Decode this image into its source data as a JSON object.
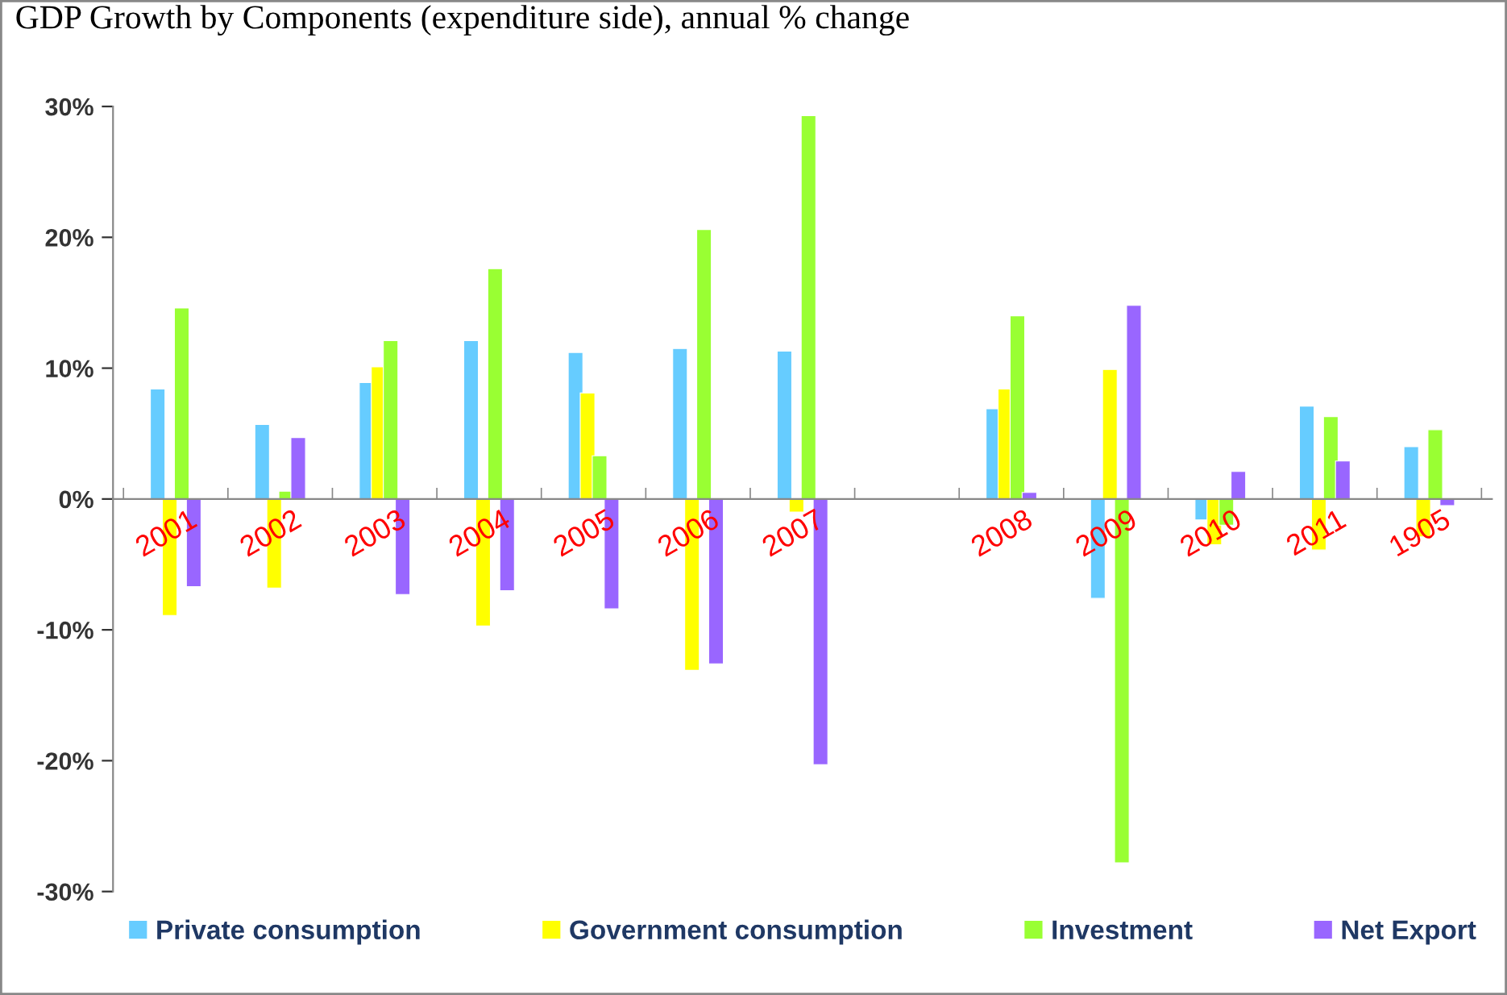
{
  "chart_data": {
    "type": "bar",
    "title": "GDP Growth by Components (expenditure side), annual % change",
    "categories": [
      "2001",
      "2002",
      "2003",
      "2004",
      "2005",
      "2006",
      "2007",
      null,
      "2008",
      "2009",
      "2010",
      "2011",
      "1905"
    ],
    "series": [
      {
        "name": "Private consumption",
        "color": "#66ccff",
        "values": [
          8.4,
          5.7,
          8.9,
          12.1,
          11.2,
          11.5,
          11.3,
          null,
          6.9,
          -7.6,
          -1.6,
          7.1,
          4.0
        ]
      },
      {
        "name": "Government consumption",
        "color": "#ffff00",
        "values": [
          -8.9,
          -6.8,
          10.1,
          -9.7,
          8.1,
          -13.1,
          -1.0,
          null,
          8.4,
          9.9,
          -3.5,
          -3.9,
          -2.9
        ]
      },
      {
        "name": "Investment",
        "color": "#99ff33",
        "values": [
          14.6,
          0.6,
          12.1,
          17.6,
          3.3,
          20.6,
          29.3,
          null,
          14.0,
          -27.8,
          -2.0,
          6.3,
          5.3
        ]
      },
      {
        "name": "Net Export",
        "color": "#9966ff",
        "values": [
          -6.7,
          4.7,
          -7.3,
          -7.0,
          -8.4,
          -12.6,
          -20.3,
          null,
          0.5,
          14.8,
          2.1,
          2.9,
          -0.5
        ]
      }
    ],
    "ylim": [
      -30,
      30
    ],
    "yticks": [
      {
        "value": -30,
        "label": "-30%"
      },
      {
        "value": -20,
        "label": "-20%"
      },
      {
        "value": -10,
        "label": "-10%"
      },
      {
        "value": 0,
        "label": "0%"
      },
      {
        "value": 10,
        "label": "10%"
      },
      {
        "value": 20,
        "label": "20%"
      },
      {
        "value": 30,
        "label": "30%"
      }
    ],
    "grid": false,
    "legend": "bottom"
  }
}
